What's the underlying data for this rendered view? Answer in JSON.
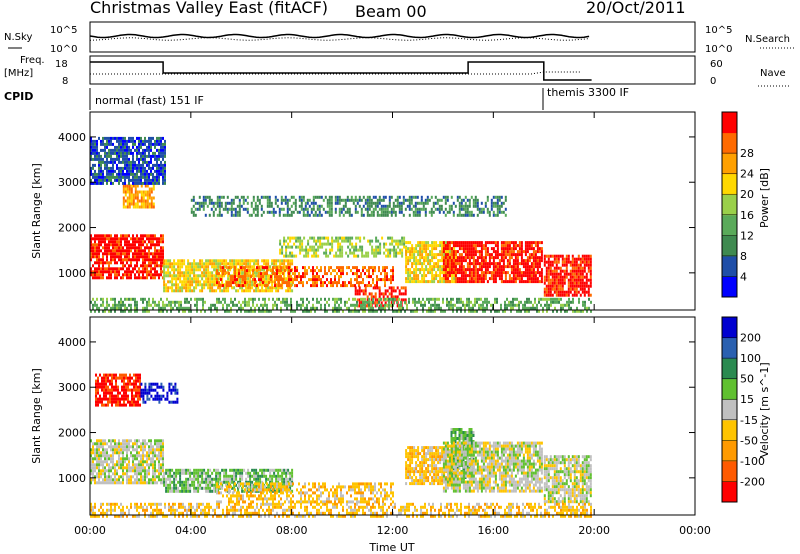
{
  "header": {
    "title": "Christmas Valley East (fitACF)",
    "beam": "Beam 00",
    "date": "20/Oct/2011"
  },
  "params": {
    "nsky_label": "N.Sky",
    "nsearch_label": "N.Search",
    "freq_label_1": "Freq.",
    "freq_label_2": "[MHz]",
    "nave_label": "Nave",
    "cpid_label": "CPID",
    "nsky_ticks": [
      "10^5",
      "10^0"
    ],
    "nsearch_ticks": [
      "10^5",
      "10^0"
    ],
    "freq_ticks": [
      "18",
      "8"
    ],
    "nave_ticks": [
      "60",
      "0"
    ],
    "cpid_modes": [
      {
        "label": "normal (fast) 151 IF",
        "start_h": 0,
        "end_h": 18
      },
      {
        "label": "themis 3300 IF",
        "start_h": 18,
        "end_h": 19.9
      }
    ]
  },
  "chart_data": [
    {
      "type": "heatmap",
      "name": "power-panel",
      "ylabel": "Slant Range [km]",
      "yticks": [
        1000,
        2000,
        3000,
        4000
      ],
      "ylim": [
        180,
        4550
      ],
      "xlim": [
        0,
        24
      ],
      "colorbar": {
        "label": "Power [dB]",
        "ticks": [
          "4",
          "8",
          "12",
          "16",
          "20",
          "24",
          "28"
        ],
        "colors": [
          "#0000ff",
          "#1f4ea8",
          "#3f8a50",
          "#5aaa5a",
          "#9ad04a",
          "#ffd800",
          "#ffa000",
          "#ff6a00",
          "#ff0000"
        ]
      },
      "regions": [
        {
          "x": [
            0.0,
            2.9
          ],
          "y": [
            900,
            1850
          ],
          "level": 8
        },
        {
          "x": [
            1.3,
            2.5
          ],
          "y": [
            2450,
            2950
          ],
          "level": 6
        },
        {
          "x": [
            2.9,
            8.0
          ],
          "y": [
            600,
            1300
          ],
          "level": 5
        },
        {
          "x": [
            5.0,
            12.0
          ],
          "y": [
            700,
            1150
          ],
          "level": 7
        },
        {
          "x": [
            7.5,
            12.5
          ],
          "y": [
            1400,
            1800
          ],
          "level": 4
        },
        {
          "x": [
            10.5,
            12.5
          ],
          "y": [
            300,
            700
          ],
          "level": 8
        },
        {
          "x": [
            12.5,
            14.5
          ],
          "y": [
            800,
            1700
          ],
          "level": 5
        },
        {
          "x": [
            14.0,
            17.9
          ],
          "y": [
            800,
            1700
          ],
          "level": 8
        },
        {
          "x": [
            18.0,
            19.9
          ],
          "y": [
            500,
            1400
          ],
          "level": 8
        },
        {
          "x": [
            0.0,
            19.9
          ],
          "y": [
            180,
            450
          ],
          "level": 3
        },
        {
          "x": [
            4.0,
            16.5
          ],
          "y": [
            2300,
            2700
          ],
          "level": 2
        },
        {
          "x": [
            0.0,
            3.0
          ],
          "y": [
            3000,
            4000
          ],
          "level": 1
        }
      ]
    },
    {
      "type": "heatmap",
      "name": "velocity-panel",
      "ylabel": "Slant Range [km]",
      "yticks": [
        1000,
        2000,
        3000,
        4000
      ],
      "ylim": [
        180,
        4550
      ],
      "xlim": [
        0,
        24
      ],
      "xticks": [
        "00:00",
        "04:00",
        "08:00",
        "12:00",
        "16:00",
        "20:00",
        "00:00"
      ],
      "xlabel": "Time UT",
      "colorbar": {
        "label": "Velocity [m s^-1]",
        "ticks": [
          "-200",
          "-100",
          "-50",
          "-15",
          "15",
          "50",
          "100",
          "200"
        ],
        "colors": [
          "#ff0000",
          "#ff5a00",
          "#ff9a00",
          "#ffc400",
          "#c0c0c0",
          "#60c030",
          "#2a8a50",
          "#2a60b0",
          "#0000d0"
        ]
      },
      "regions": [
        {
          "x": [
            0.0,
            2.9
          ],
          "y": [
            900,
            1850
          ],
          "level": 4
        },
        {
          "x": [
            0.2,
            2.0
          ],
          "y": [
            2600,
            3300
          ],
          "level": 0
        },
        {
          "x": [
            2.0,
            3.5
          ],
          "y": [
            2700,
            3100
          ],
          "level": 8
        },
        {
          "x": [
            2.9,
            8.0
          ],
          "y": [
            700,
            1200
          ],
          "level": 5
        },
        {
          "x": [
            5.0,
            12.0
          ],
          "y": [
            500,
            900
          ],
          "level": 3
        },
        {
          "x": [
            12.5,
            14.5
          ],
          "y": [
            900,
            1700
          ],
          "level": 3
        },
        {
          "x": [
            14.3,
            15.2
          ],
          "y": [
            1000,
            2100
          ],
          "level": 5
        },
        {
          "x": [
            14.0,
            17.9
          ],
          "y": [
            700,
            1800
          ],
          "level": 4
        },
        {
          "x": [
            18.0,
            19.9
          ],
          "y": [
            500,
            1500
          ],
          "level": 4
        },
        {
          "x": [
            0.0,
            19.9
          ],
          "y": [
            180,
            450
          ],
          "level": 3
        }
      ]
    }
  ]
}
